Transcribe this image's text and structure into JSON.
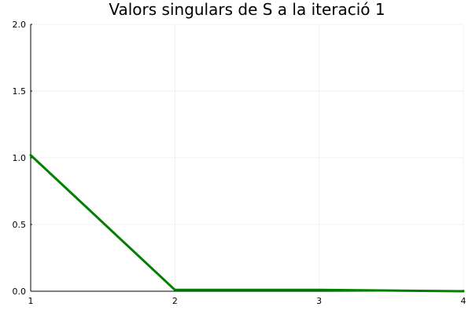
{
  "chart_data": {
    "type": "line",
    "title": "Valors singulars de S a la iteració 1",
    "xlabel": "",
    "ylabel": "",
    "xlim": [
      1,
      4
    ],
    "ylim": [
      0,
      2
    ],
    "x_ticks": [
      1,
      2,
      3,
      4
    ],
    "x_tick_labels": [
      "1",
      "2",
      "3",
      "4"
    ],
    "y_ticks": [
      0,
      0.5,
      1,
      1.5,
      2
    ],
    "y_tick_labels": [
      "0.0",
      "0.5",
      "1.0",
      "1.5",
      "2.0"
    ],
    "grid": true,
    "legend": "none",
    "series": [
      {
        "x": [
          1,
          2,
          3,
          4
        ],
        "y": [
          1.02,
          0.01,
          0.01,
          0.0
        ],
        "color": "#008000"
      }
    ]
  }
}
